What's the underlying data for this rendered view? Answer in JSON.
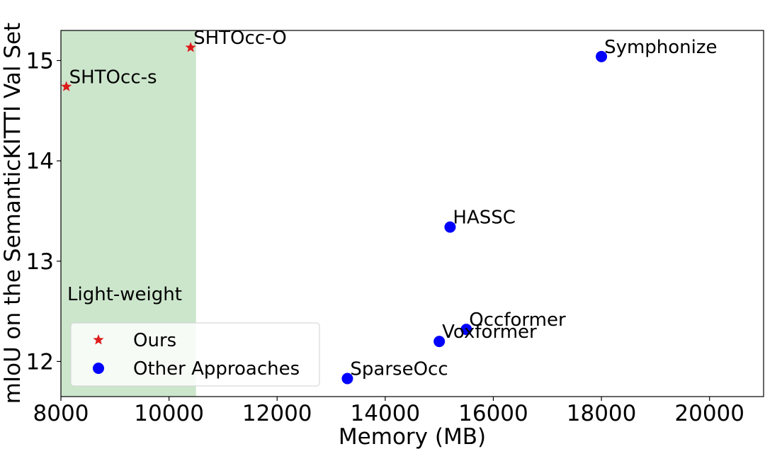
{
  "chart_data": {
    "type": "scatter",
    "xlabel": "Memory (MB)",
    "ylabel": "mIoU on the SemanticKITTI Val Set",
    "xlim": [
      8000,
      21000
    ],
    "ylim": [
      11.65,
      15.3
    ],
    "xticks": [
      8000,
      10000,
      12000,
      14000,
      16000,
      18000,
      20000
    ],
    "yticks": [
      12,
      13,
      14,
      15
    ],
    "grid": false,
    "legend_placement": "lower-left",
    "shaded_region": {
      "x_start": 8000,
      "x_end": 10500,
      "label": "Light-weight",
      "color": "#cce6cc"
    },
    "series": [
      {
        "name": "Ours",
        "marker": "star",
        "color": "#dd1a1a",
        "points": [
          {
            "label": "SHTOcc-s",
            "x": 8100,
            "y": 14.74
          },
          {
            "label": "SHTOcc-O",
            "x": 10400,
            "y": 15.13
          }
        ]
      },
      {
        "name": "Other Approaches",
        "marker": "circle",
        "color": "#0000ff",
        "points": [
          {
            "label": "Symphonize",
            "x": 18000,
            "y": 15.04
          },
          {
            "label": "HASSC",
            "x": 15200,
            "y": 13.34
          },
          {
            "label": "Occformer",
            "x": 15500,
            "y": 12.32
          },
          {
            "label": "Voxformer",
            "x": 15000,
            "y": 12.2
          },
          {
            "label": "SparseOcc",
            "x": 13300,
            "y": 11.83
          }
        ]
      }
    ]
  }
}
